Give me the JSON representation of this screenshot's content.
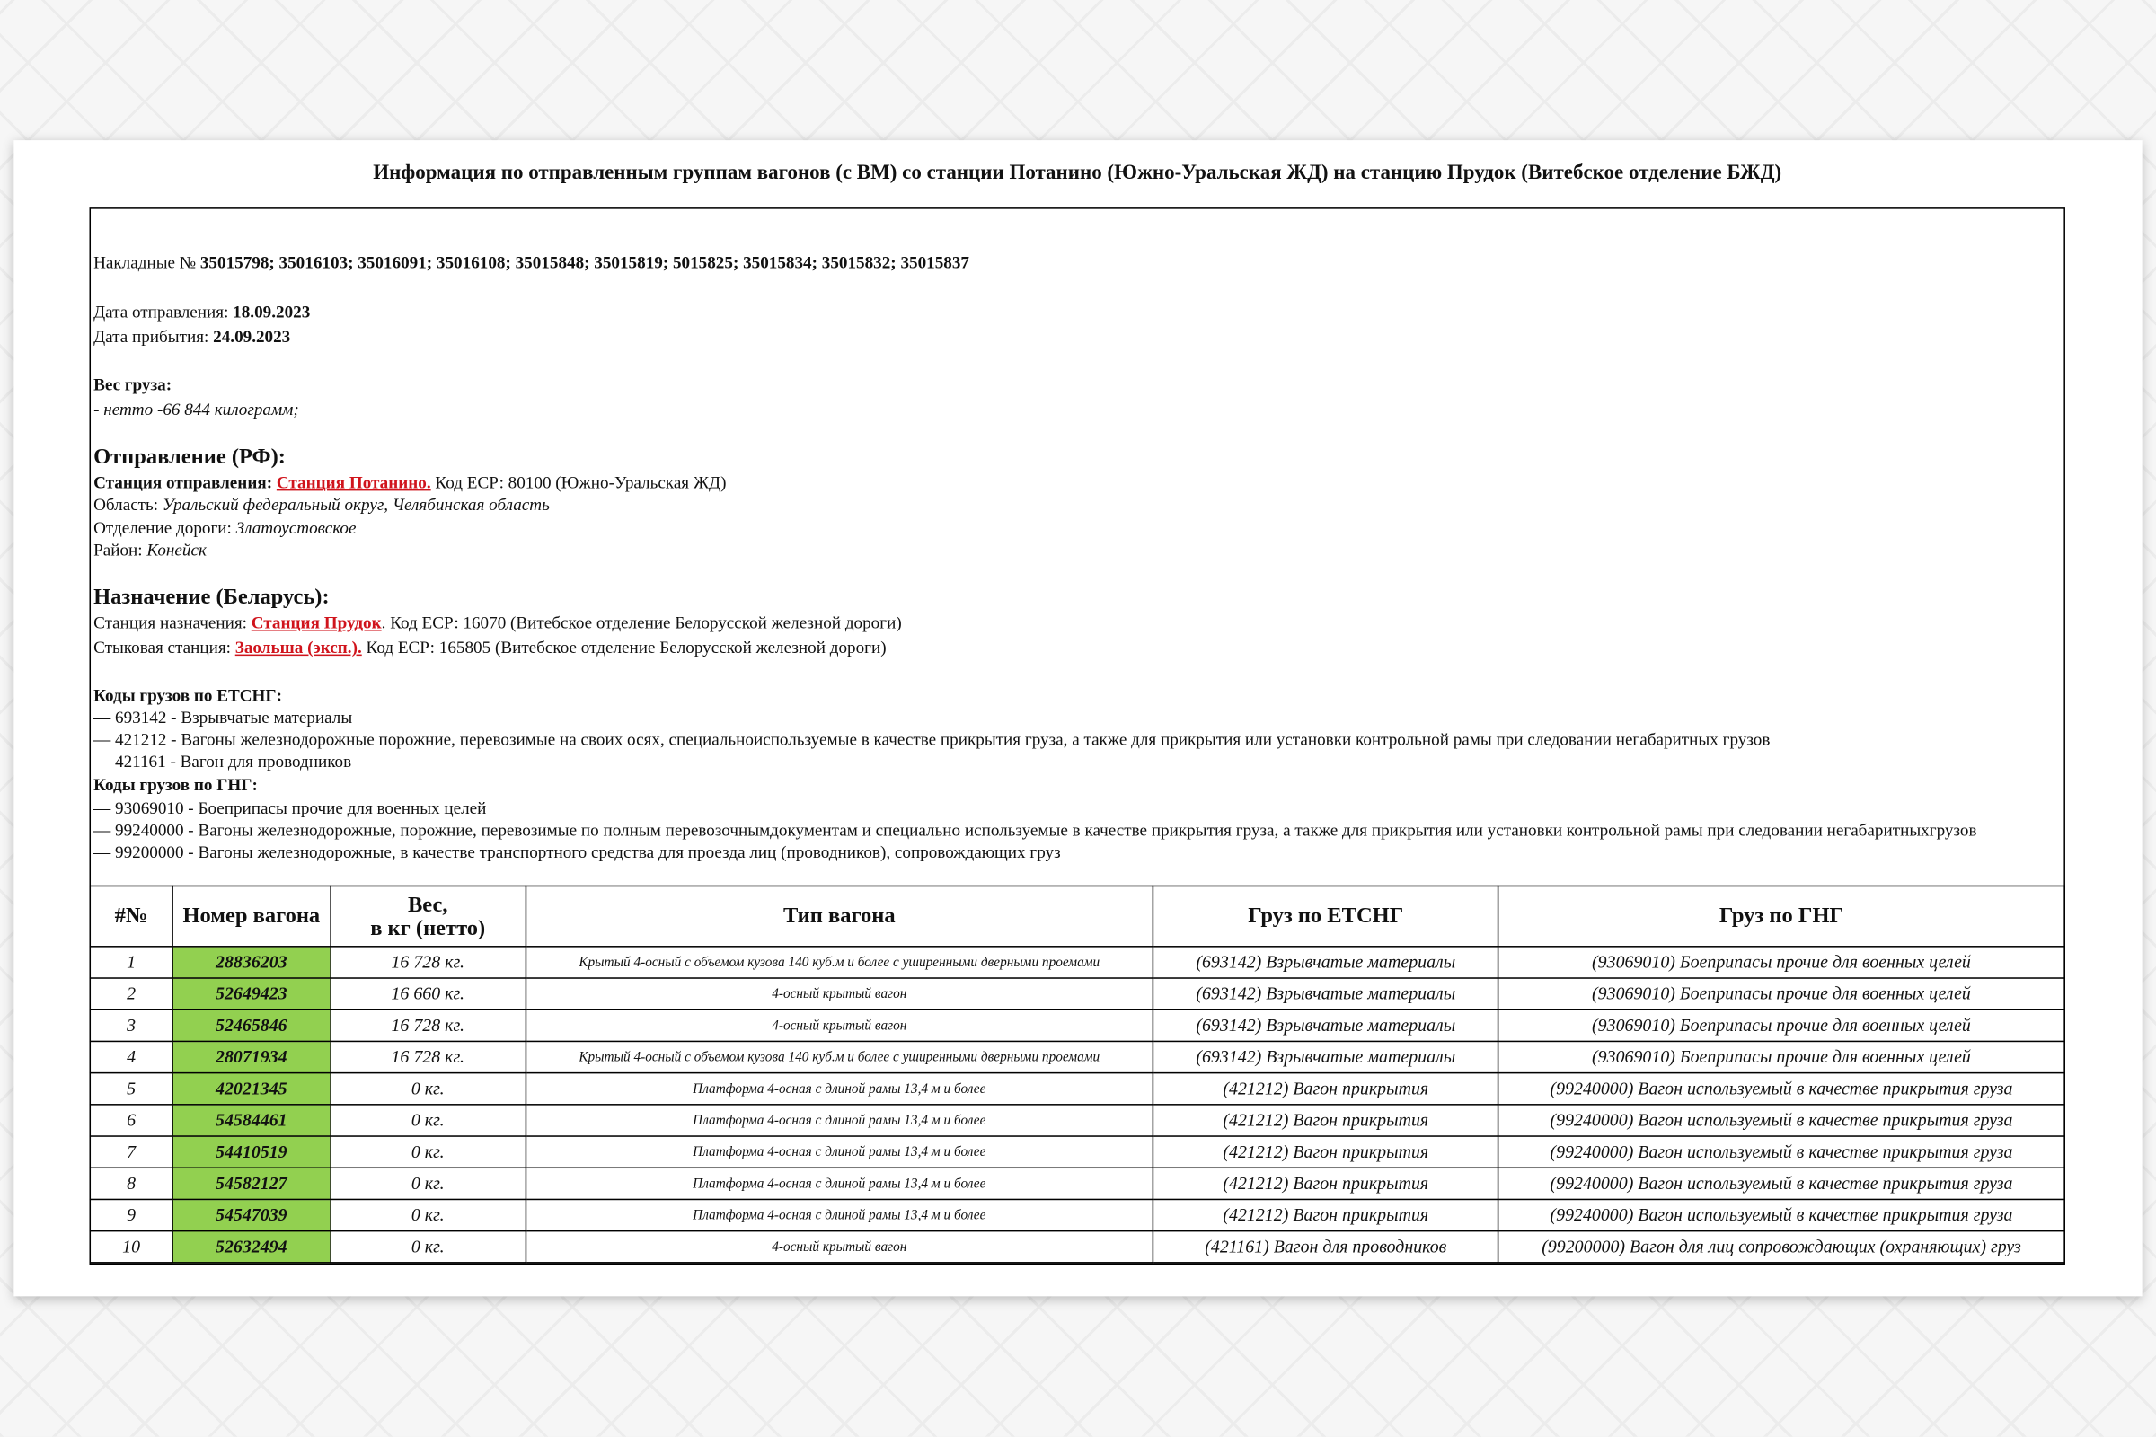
{
  "title": "Информация по отправленным группам вагонов (с ВМ) со станции Потанино (Южно-Уральская ЖД) на станцию Прудок (Витебское отделение БЖД)",
  "info": {
    "waybills_label": "Накладные №",
    "waybills": "35015798; 35016103; 35016091; 35016108; 35015848; 35015819; 5015825; 35015834; 35015832; 35015837",
    "departure_date_label": "Дата отправления:",
    "departure_date": "18.09.2023",
    "arrival_date_label": "Дата прибытия:",
    "arrival_date": "24.09.2023",
    "weight_label": "Вес груза:",
    "weight": "- нетто -66 844 килограмм;",
    "origin": {
      "heading": "Отправление (РФ):",
      "station_label": "Станция отправления:",
      "station": "Станция Потанино.",
      "station_code": "Код ЕСР: 80100 (Южно-Уральская ЖД)",
      "region_label": "Область:",
      "region": "Уральский федеральный округ, Челябинская область",
      "division_label": "Отделение дороги:",
      "division": "Златоустовское",
      "district_label": "Район:",
      "district": "Конейск"
    },
    "destination": {
      "heading": "Назначение (Беларусь):",
      "station_label": "Станция назначения:",
      "station": "Станция Прудок",
      "station_code": ". Код ЕСР: 16070 (Витебское отделение Белорусской железной дороги)",
      "junction_label": "Стыковая станция:",
      "junction": "Заольша (эксп.).",
      "junction_code": "Код ЕСР: 165805 (Витебское отделение Белорусской железной дороги)"
    },
    "etsng_heading": "Коды грузов по ЕТСНГ:",
    "etsng": [
      "— 693142 - Взрывчатые материалы",
      "— 421212 - Вагоны железнодорожные порожние, перевозимые на своих осях, специальноиспользуемые в качестве прикрытия груза, а также для прикрытия или установки контрольной рамы при следовании негабаритных грузов",
      "— 421161 - Вагон для проводников"
    ],
    "gng_heading": "Коды грузов по ГНГ:",
    "gng": [
      "— 93069010 - Боеприпасы прочие для военных целей",
      "— 99240000 - Вагоны железнодорожные, порожние, перевозимые по полным перевозочнымдокументам и специально используемые в качестве прикрытия груза, а также для прикрытия или установки контрольной рамы при следовании негабаритныхгрузов",
      "— 99200000 - Вагоны железнодорожные, в качестве транспортного средства для проезда лиц (проводников), сопровождающих груз"
    ]
  },
  "table": {
    "headers": [
      "#№",
      "Номер вагона",
      "Вес,\nв кг (нетто)",
      "Тип вагона",
      "Груз по ЕТСНГ",
      "Груз по ГНГ"
    ],
    "rows": [
      [
        "1",
        "28836203",
        "16 728 кг.",
        "Крытый 4-осный с объемом кузова 140 куб.м и более с уширенными дверными проемами",
        "(693142) Взрывчатые материалы",
        "(93069010) Боеприпасы прочие для военных целей"
      ],
      [
        "2",
        "52649423",
        "16 660 кг.",
        "4-осный крытый вагон",
        "(693142) Взрывчатые материалы",
        "(93069010) Боеприпасы прочие для военных целей"
      ],
      [
        "3",
        "52465846",
        "16 728 кг.",
        "4-осный крытый вагон",
        "(693142) Взрывчатые материалы",
        "(93069010) Боеприпасы прочие для военных целей"
      ],
      [
        "4",
        "28071934",
        "16 728 кг.",
        "Крытый 4-осный с объемом кузова 140 куб.м и более с уширенными дверными проемами",
        "(693142) Взрывчатые материалы",
        "(93069010) Боеприпасы прочие для военных целей"
      ],
      [
        "5",
        "42021345",
        "0 кг.",
        "Платформа 4-осная с длиной рамы 13,4 м и более",
        "(421212) Вагон прикрытия",
        "(99240000) Вагон используемый в качестве прикрытия груза"
      ],
      [
        "6",
        "54584461",
        "0 кг.",
        "Платформа 4-осная с длиной рамы 13,4 м и более",
        "(421212) Вагон прикрытия",
        "(99240000) Вагон используемый в качестве прикрытия груза"
      ],
      [
        "7",
        "54410519",
        "0 кг.",
        "Платформа 4-осная с длиной рамы 13,4 м и более",
        "(421212) Вагон прикрытия",
        "(99240000) Вагон используемый в качестве прикрытия груза"
      ],
      [
        "8",
        "54582127",
        "0 кг.",
        "Платформа 4-осная с длиной рамы 13,4 м и более",
        "(421212) Вагон прикрытия",
        "(99240000) Вагон используемый в качестве прикрытия груза"
      ],
      [
        "9",
        "54547039",
        "0 кг.",
        "Платформа 4-осная с длиной рамы 13,4 м и более",
        "(421212) Вагон прикрытия",
        "(99240000) Вагон используемый в качестве прикрытия груза"
      ],
      [
        "10",
        "52632494",
        "0 кг.",
        "4-осный крытый вагон",
        "(421161) Вагон для проводников",
        "(99200000) Вагон для лиц сопровождающих (охраняющих) груз"
      ]
    ]
  }
}
